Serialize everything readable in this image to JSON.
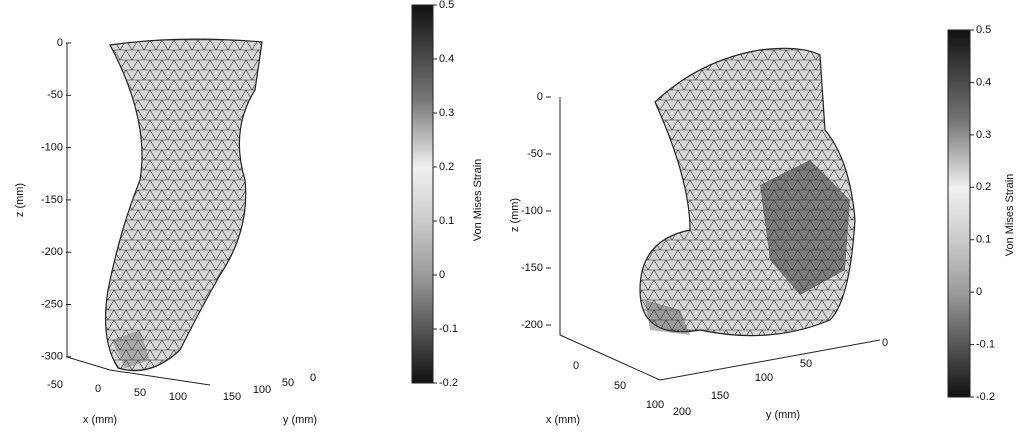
{
  "panels": [
    {
      "z_label": "z (mm)",
      "x_label": "x (mm)",
      "y_label": "y (mm)",
      "z_ticks": [
        0,
        -50,
        -100,
        -150,
        -200,
        -250,
        -300
      ],
      "x_ticks": [
        -50,
        0,
        50,
        100
      ],
      "y_ticks": [
        150,
        100,
        50,
        0
      ],
      "colorbar": {
        "label": "Von Mises Strain",
        "lim": [
          -0.2,
          0.5
        ],
        "ticks": [
          0.5,
          0.4,
          0.3,
          0.2,
          0.1,
          0,
          -0.1,
          -0.2
        ]
      }
    },
    {
      "z_label": "z (mm)",
      "x_label": "x (mm)",
      "y_label": "y (mm)",
      "z_ticks": [
        0,
        -50,
        -100,
        -150,
        -200
      ],
      "x_ticks": [
        0,
        50,
        100
      ],
      "y_ticks": [
        200,
        150,
        100,
        50,
        0
      ],
      "colorbar": {
        "label": "Von Mises Strain",
        "lim": [
          -0.2,
          0.5
        ],
        "ticks": [
          0.5,
          0.4,
          0.3,
          0.2,
          0.1,
          0,
          -0.1,
          -0.2
        ]
      }
    }
  ]
}
